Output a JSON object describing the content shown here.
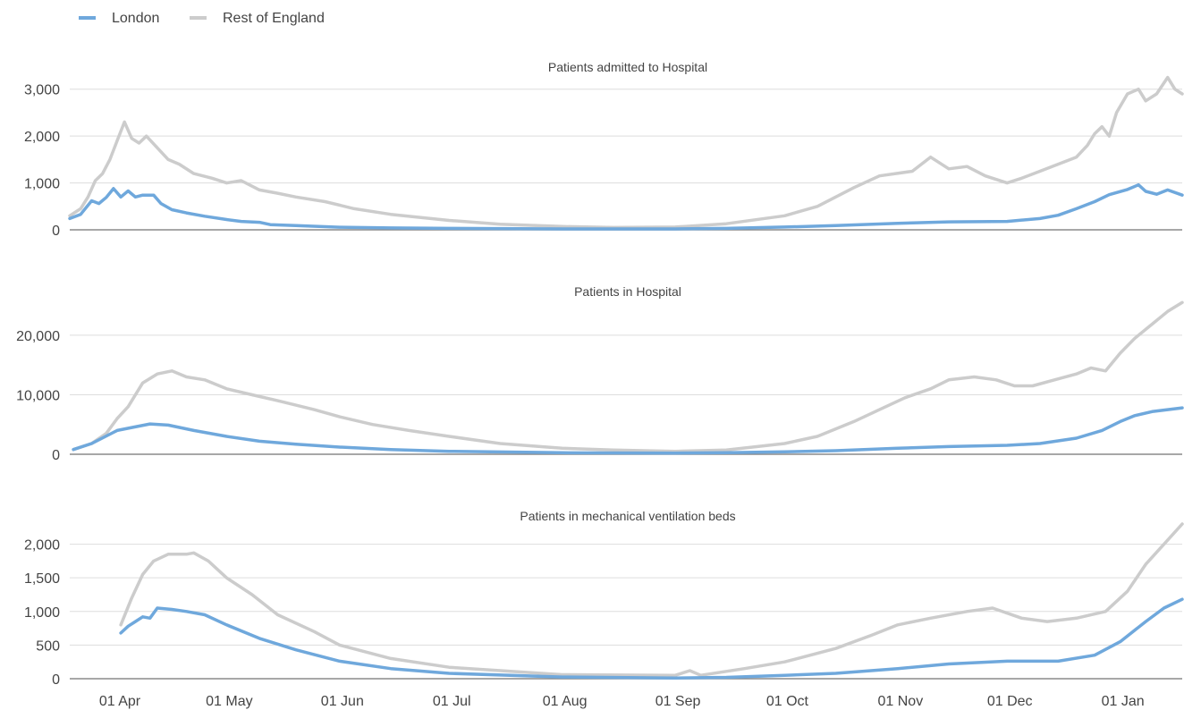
{
  "legend": {
    "placement": "top-left",
    "items": [
      {
        "label": "London",
        "color": "#6fa8dc"
      },
      {
        "label": "Rest of England",
        "color": "#cccccc"
      }
    ]
  },
  "x_axis": {
    "ticks": [
      "01 Apr",
      "01 May",
      "01 Jun",
      "01 Jul",
      "01 Aug",
      "01 Sep",
      "01 Oct",
      "01 Nov",
      "01 Dec",
      "01 Jan"
    ],
    "range": [
      "2020-03-19",
      "2021-01-18"
    ]
  },
  "chart_data": [
    {
      "type": "line",
      "title": "Patients admitted to Hospital",
      "ylim": [
        0,
        3300
      ],
      "yticks": [
        0,
        1000,
        2000,
        3000
      ],
      "ytick_labels": [
        "0",
        "1,000",
        "2,000",
        "3,000"
      ],
      "grid": true,
      "series": [
        {
          "name": "London",
          "color": "#6fa8dc",
          "points": [
            [
              "2020-03-19",
              240
            ],
            [
              "2020-03-22",
              330
            ],
            [
              "2020-03-25",
              620
            ],
            [
              "2020-03-27",
              560
            ],
            [
              "2020-03-29",
              690
            ],
            [
              "2020-03-31",
              880
            ],
            [
              "2020-04-02",
              700
            ],
            [
              "2020-04-04",
              830
            ],
            [
              "2020-04-06",
              700
            ],
            [
              "2020-04-08",
              740
            ],
            [
              "2020-04-11",
              740
            ],
            [
              "2020-04-13",
              560
            ],
            [
              "2020-04-16",
              430
            ],
            [
              "2020-04-20",
              360
            ],
            [
              "2020-04-25",
              290
            ],
            [
              "2020-05-01",
              220
            ],
            [
              "2020-05-05",
              180
            ],
            [
              "2020-05-10",
              160
            ],
            [
              "2020-05-13",
              110
            ],
            [
              "2020-05-20",
              90
            ],
            [
              "2020-06-01",
              55
            ],
            [
              "2020-06-15",
              40
            ],
            [
              "2020-07-01",
              30
            ],
            [
              "2020-08-01",
              20
            ],
            [
              "2020-09-01",
              20
            ],
            [
              "2020-09-15",
              30
            ],
            [
              "2020-10-01",
              60
            ],
            [
              "2020-10-15",
              90
            ],
            [
              "2020-11-01",
              140
            ],
            [
              "2020-11-15",
              170
            ],
            [
              "2020-12-01",
              180
            ],
            [
              "2020-12-10",
              240
            ],
            [
              "2020-12-15",
              310
            ],
            [
              "2020-12-20",
              450
            ],
            [
              "2020-12-25",
              600
            ],
            [
              "2020-12-29",
              750
            ],
            [
              "2021-01-03",
              860
            ],
            [
              "2021-01-06",
              960
            ],
            [
              "2021-01-08",
              820
            ],
            [
              "2021-01-11",
              760
            ],
            [
              "2021-01-14",
              850
            ],
            [
              "2021-01-18",
              740
            ]
          ]
        },
        {
          "name": "Rest of England",
          "color": "#cccccc",
          "points": [
            [
              "2020-03-19",
              300
            ],
            [
              "2020-03-22",
              450
            ],
            [
              "2020-03-24",
              700
            ],
            [
              "2020-03-26",
              1050
            ],
            [
              "2020-03-28",
              1200
            ],
            [
              "2020-03-30",
              1500
            ],
            [
              "2020-04-01",
              1900
            ],
            [
              "2020-04-03",
              2300
            ],
            [
              "2020-04-05",
              1950
            ],
            [
              "2020-04-07",
              1850
            ],
            [
              "2020-04-09",
              2000
            ],
            [
              "2020-04-12",
              1750
            ],
            [
              "2020-04-15",
              1500
            ],
            [
              "2020-04-18",
              1400
            ],
            [
              "2020-04-22",
              1200
            ],
            [
              "2020-04-27",
              1100
            ],
            [
              "2020-05-01",
              1000
            ],
            [
              "2020-05-05",
              1050
            ],
            [
              "2020-05-10",
              850
            ],
            [
              "2020-05-15",
              780
            ],
            [
              "2020-05-20",
              700
            ],
            [
              "2020-05-28",
              600
            ],
            [
              "2020-06-05",
              450
            ],
            [
              "2020-06-15",
              330
            ],
            [
              "2020-07-01",
              200
            ],
            [
              "2020-07-15",
              120
            ],
            [
              "2020-08-01",
              70
            ],
            [
              "2020-08-15",
              50
            ],
            [
              "2020-09-01",
              60
            ],
            [
              "2020-09-15",
              130
            ],
            [
              "2020-10-01",
              300
            ],
            [
              "2020-10-10",
              500
            ],
            [
              "2020-10-20",
              900
            ],
            [
              "2020-10-27",
              1150
            ],
            [
              "2020-11-05",
              1250
            ],
            [
              "2020-11-10",
              1550
            ],
            [
              "2020-11-15",
              1300
            ],
            [
              "2020-11-20",
              1350
            ],
            [
              "2020-11-25",
              1150
            ],
            [
              "2020-12-01",
              1000
            ],
            [
              "2020-12-05",
              1100
            ],
            [
              "2020-12-10",
              1250
            ],
            [
              "2020-12-15",
              1400
            ],
            [
              "2020-12-20",
              1550
            ],
            [
              "2020-12-23",
              1800
            ],
            [
              "2020-12-25",
              2050
            ],
            [
              "2020-12-27",
              2200
            ],
            [
              "2020-12-29",
              2000
            ],
            [
              "2020-12-31",
              2500
            ],
            [
              "2021-01-03",
              2900
            ],
            [
              "2021-01-06",
              3000
            ],
            [
              "2021-01-08",
              2750
            ],
            [
              "2021-01-11",
              2900
            ],
            [
              "2021-01-14",
              3250
            ],
            [
              "2021-01-16",
              3000
            ],
            [
              "2021-01-18",
              2900
            ]
          ]
        }
      ]
    },
    {
      "type": "line",
      "title": "Patients in Hospital",
      "ylim": [
        0,
        26000
      ],
      "yticks": [
        0,
        10000,
        20000
      ],
      "ytick_labels": [
        "0",
        "10,000",
        "20,000"
      ],
      "grid": true,
      "series": [
        {
          "name": "London",
          "color": "#6fa8dc",
          "points": [
            [
              "2020-03-20",
              800
            ],
            [
              "2020-03-25",
              1800
            ],
            [
              "2020-04-01",
              4000
            ],
            [
              "2020-04-05",
              4500
            ],
            [
              "2020-04-10",
              5100
            ],
            [
              "2020-04-15",
              4900
            ],
            [
              "2020-04-22",
              4000
            ],
            [
              "2020-05-01",
              3000
            ],
            [
              "2020-05-10",
              2200
            ],
            [
              "2020-05-20",
              1700
            ],
            [
              "2020-06-01",
              1200
            ],
            [
              "2020-06-15",
              800
            ],
            [
              "2020-07-01",
              500
            ],
            [
              "2020-08-01",
              250
            ],
            [
              "2020-09-01",
              200
            ],
            [
              "2020-09-15",
              250
            ],
            [
              "2020-10-01",
              400
            ],
            [
              "2020-10-15",
              600
            ],
            [
              "2020-11-01",
              1000
            ],
            [
              "2020-11-15",
              1300
            ],
            [
              "2020-12-01",
              1500
            ],
            [
              "2020-12-10",
              1800
            ],
            [
              "2020-12-20",
              2700
            ],
            [
              "2020-12-27",
              4000
            ],
            [
              "2021-01-01",
              5500
            ],
            [
              "2021-01-05",
              6500
            ],
            [
              "2021-01-10",
              7200
            ],
            [
              "2021-01-18",
              7800
            ]
          ]
        },
        {
          "name": "Rest of England",
          "color": "#cccccc",
          "points": [
            [
              "2020-03-20",
              800
            ],
            [
              "2020-03-25",
              1800
            ],
            [
              "2020-03-29",
              3500
            ],
            [
              "2020-04-01",
              6000
            ],
            [
              "2020-04-04",
              8000
            ],
            [
              "2020-04-08",
              12000
            ],
            [
              "2020-04-12",
              13500
            ],
            [
              "2020-04-16",
              14000
            ],
            [
              "2020-04-20",
              13000
            ],
            [
              "2020-04-25",
              12500
            ],
            [
              "2020-05-01",
              11000
            ],
            [
              "2020-05-08",
              10000
            ],
            [
              "2020-05-15",
              9000
            ],
            [
              "2020-05-25",
              7500
            ],
            [
              "2020-06-01",
              6300
            ],
            [
              "2020-06-10",
              5000
            ],
            [
              "2020-06-20",
              4000
            ],
            [
              "2020-07-01",
              3000
            ],
            [
              "2020-07-15",
              1800
            ],
            [
              "2020-08-01",
              1000
            ],
            [
              "2020-08-15",
              700
            ],
            [
              "2020-09-01",
              500
            ],
            [
              "2020-09-15",
              700
            ],
            [
              "2020-10-01",
              1800
            ],
            [
              "2020-10-10",
              3000
            ],
            [
              "2020-10-20",
              5500
            ],
            [
              "2020-10-27",
              7500
            ],
            [
              "2020-11-03",
              9500
            ],
            [
              "2020-11-10",
              11000
            ],
            [
              "2020-11-15",
              12500
            ],
            [
              "2020-11-22",
              13000
            ],
            [
              "2020-11-28",
              12500
            ],
            [
              "2020-12-03",
              11500
            ],
            [
              "2020-12-08",
              11500
            ],
            [
              "2020-12-14",
              12500
            ],
            [
              "2020-12-20",
              13500
            ],
            [
              "2020-12-24",
              14500
            ],
            [
              "2020-12-28",
              14000
            ],
            [
              "2021-01-01",
              17000
            ],
            [
              "2021-01-05",
              19500
            ],
            [
              "2021-01-10",
              22000
            ],
            [
              "2021-01-14",
              24000
            ],
            [
              "2021-01-18",
              25500
            ]
          ]
        }
      ]
    },
    {
      "type": "line",
      "title": "Patients in mechanical ventilation beds",
      "ylim": [
        0,
        2300
      ],
      "yticks": [
        0,
        500,
        1000,
        1500,
        2000
      ],
      "ytick_labels": [
        "0",
        "500",
        "1,000",
        "1,500",
        "2,000"
      ],
      "grid": true,
      "series": [
        {
          "name": "London",
          "color": "#6fa8dc",
          "points": [
            [
              "2020-04-02",
              680
            ],
            [
              "2020-04-04",
              780
            ],
            [
              "2020-04-06",
              850
            ],
            [
              "2020-04-08",
              920
            ],
            [
              "2020-04-10",
              900
            ],
            [
              "2020-04-12",
              1050
            ],
            [
              "2020-04-16",
              1030
            ],
            [
              "2020-04-20",
              1000
            ],
            [
              "2020-04-25",
              950
            ],
            [
              "2020-05-01",
              800
            ],
            [
              "2020-05-10",
              600
            ],
            [
              "2020-05-20",
              430
            ],
            [
              "2020-06-01",
              260
            ],
            [
              "2020-06-15",
              150
            ],
            [
              "2020-07-01",
              80
            ],
            [
              "2020-08-01",
              25
            ],
            [
              "2020-09-01",
              10
            ],
            [
              "2020-09-15",
              20
            ],
            [
              "2020-10-01",
              50
            ],
            [
              "2020-10-15",
              80
            ],
            [
              "2020-11-01",
              150
            ],
            [
              "2020-11-15",
              220
            ],
            [
              "2020-12-01",
              260
            ],
            [
              "2020-12-15",
              260
            ],
            [
              "2020-12-25",
              350
            ],
            [
              "2021-01-01",
              550
            ],
            [
              "2021-01-08",
              850
            ],
            [
              "2021-01-13",
              1050
            ],
            [
              "2021-01-18",
              1180
            ]
          ]
        },
        {
          "name": "Rest of England",
          "color": "#cccccc",
          "points": [
            [
              "2020-04-02",
              800
            ],
            [
              "2020-04-05",
              1200
            ],
            [
              "2020-04-08",
              1550
            ],
            [
              "2020-04-11",
              1750
            ],
            [
              "2020-04-15",
              1850
            ],
            [
              "2020-04-20",
              1850
            ],
            [
              "2020-04-22",
              1870
            ],
            [
              "2020-04-26",
              1750
            ],
            [
              "2020-05-01",
              1500
            ],
            [
              "2020-05-08",
              1250
            ],
            [
              "2020-05-15",
              950
            ],
            [
              "2020-05-25",
              700
            ],
            [
              "2020-06-01",
              500
            ],
            [
              "2020-06-15",
              300
            ],
            [
              "2020-07-01",
              170
            ],
            [
              "2020-08-01",
              60
            ],
            [
              "2020-09-01",
              50
            ],
            [
              "2020-09-05",
              120
            ],
            [
              "2020-09-08",
              50
            ],
            [
              "2020-09-20",
              150
            ],
            [
              "2020-10-01",
              250
            ],
            [
              "2020-10-15",
              450
            ],
            [
              "2020-10-25",
              650
            ],
            [
              "2020-11-01",
              800
            ],
            [
              "2020-11-10",
              900
            ],
            [
              "2020-11-20",
              1000
            ],
            [
              "2020-11-27",
              1050
            ],
            [
              "2020-12-05",
              900
            ],
            [
              "2020-12-12",
              850
            ],
            [
              "2020-12-20",
              900
            ],
            [
              "2020-12-28",
              1000
            ],
            [
              "2021-01-03",
              1300
            ],
            [
              "2021-01-08",
              1700
            ],
            [
              "2021-01-13",
              2000
            ],
            [
              "2021-01-18",
              2300
            ]
          ]
        }
      ]
    }
  ]
}
